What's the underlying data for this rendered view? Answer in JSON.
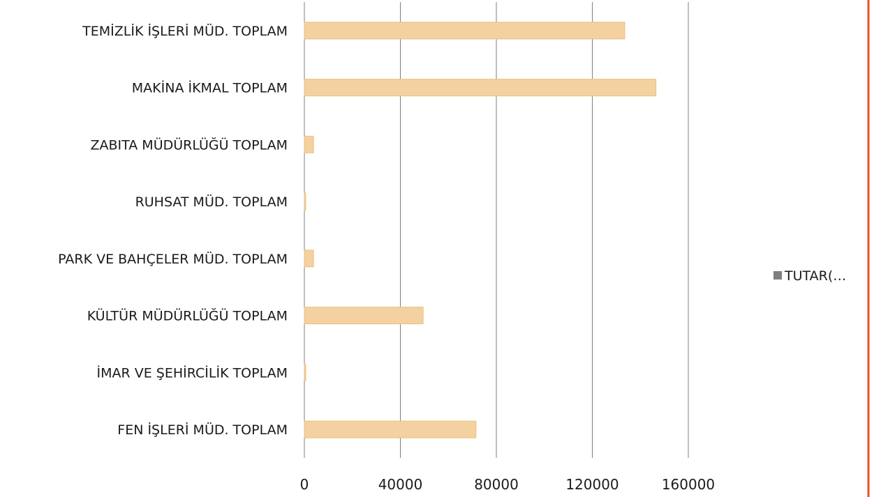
{
  "chart_data": {
    "type": "bar",
    "orientation": "horizontal",
    "categories": [
      "TEMİZLİK İŞLERİ MÜD. TOPLAM",
      "MAKİNA İKMAL TOPLAM",
      "ZABITA MÜDÜRLÜĞÜ TOPLAM",
      "RUHSAT MÜD. TOPLAM",
      "PARK VE BAHÇELER MÜD. TOPLAM",
      "KÜLTÜR MÜDÜRLÜĞÜ TOPLAM",
      "İMAR VE ŞEHİRCİLİK TOPLAM",
      "FEN İŞLERİ MÜD. TOPLAM"
    ],
    "series": [
      {
        "name": "TUTAR(…",
        "values": [
          133500,
          146500,
          3800,
          500,
          3800,
          49500,
          500,
          71500
        ]
      }
    ],
    "xlim": [
      0,
      160000
    ],
    "xticks": [
      "0",
      "40000",
      "80000",
      "120000",
      "160000"
    ],
    "grid": true,
    "legend_position": "right",
    "colors": {
      "bar_fill": "#f4d1a0",
      "bar_edge": "#e9c07e",
      "legend_swatch": "#7f7f7f",
      "grid": "#7f7f7f",
      "frame_line": "#e8521f"
    }
  }
}
